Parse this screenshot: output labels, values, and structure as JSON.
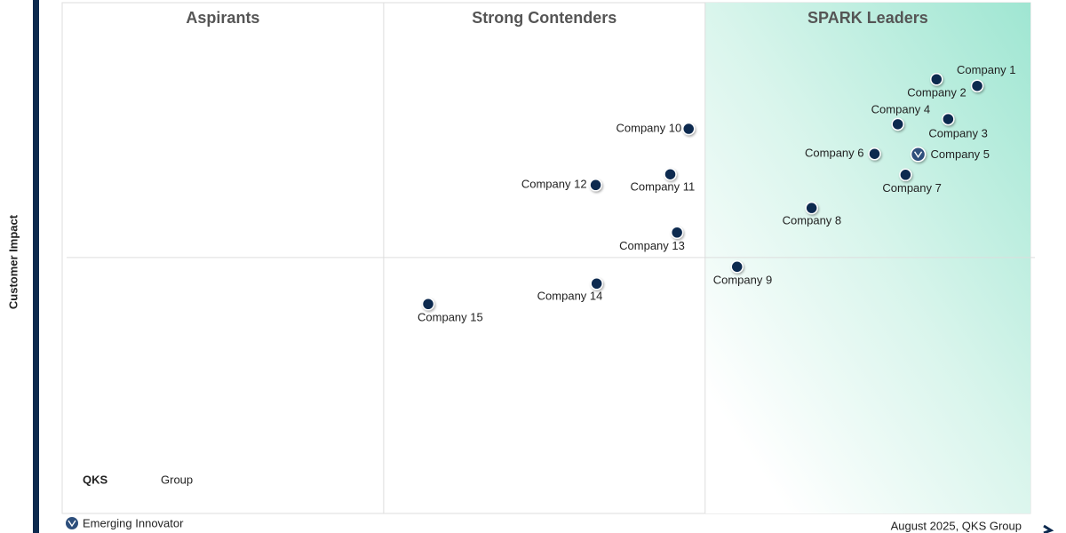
{
  "chart_data": {
    "type": "scatter",
    "y_label": "Customer Impact",
    "quadrants": [
      "Aspirants",
      "Strong Contenders",
      "SPARK Leaders"
    ],
    "xlim": [
      0,
      100
    ],
    "ylim": [
      0,
      100
    ],
    "dividers": {
      "x": [
        33.2,
        66.4
      ],
      "y": [
        50.1
      ]
    },
    "color": "#0d2a4f",
    "points": [
      {
        "name": "Company 1",
        "x": 94.5,
        "y": 83.7
      },
      {
        "name": "Company 2",
        "x": 90.3,
        "y": 85.0
      },
      {
        "name": "Company 3",
        "x": 91.5,
        "y": 77.2
      },
      {
        "name": "Company 4",
        "x": 86.3,
        "y": 76.2
      },
      {
        "name": "Company 5",
        "x": 88.4,
        "y": 70.3,
        "emerging": true
      },
      {
        "name": "Company 6",
        "x": 83.9,
        "y": 70.4
      },
      {
        "name": "Company 7",
        "x": 87.1,
        "y": 66.3
      },
      {
        "name": "Company 8",
        "x": 77.4,
        "y": 59.8
      },
      {
        "name": "Company 9",
        "x": 69.7,
        "y": 48.3
      },
      {
        "name": "Company 10",
        "x": 64.7,
        "y": 75.3
      },
      {
        "name": "Company 11",
        "x": 62.8,
        "y": 66.4
      },
      {
        "name": "Company 12",
        "x": 55.1,
        "y": 64.3
      },
      {
        "name": "Company 13",
        "x": 63.5,
        "y": 55.0
      },
      {
        "name": "Company 14",
        "x": 55.2,
        "y": 45.0
      },
      {
        "name": "Company 15",
        "x": 37.8,
        "y": 41.0
      }
    ],
    "logo": {
      "bold": "QKS",
      "light": "Group"
    },
    "legend": "Emerging Innovator",
    "footnote": "August 2025, QKS Group"
  }
}
